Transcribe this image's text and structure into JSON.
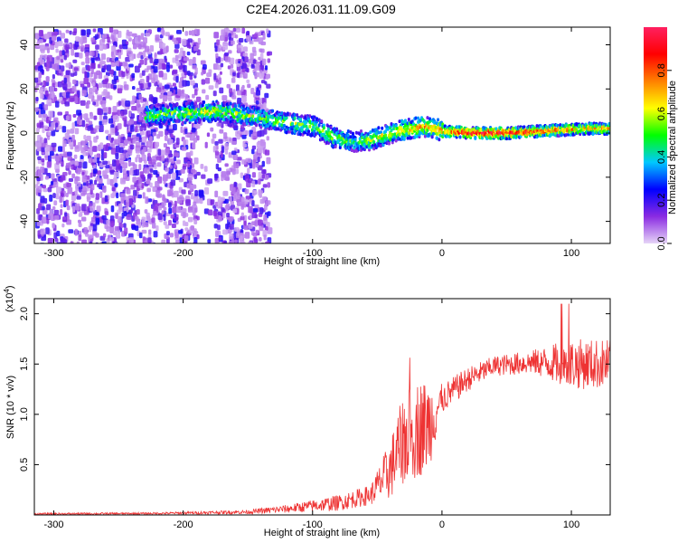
{
  "title": "C2E4.2026.031.11.09.G09",
  "chart_data": [
    {
      "type": "heatmap",
      "xlabel": "Height of straight line (km)",
      "ylabel": "Frequency (Hz)",
      "xlim": [
        -315,
        130
      ],
      "ylim": [
        -50,
        48
      ],
      "xticks": [
        -300,
        -200,
        -100,
        0,
        100
      ],
      "yticks": [
        -40,
        -20,
        0,
        20,
        40
      ],
      "colorbar": {
        "label": "Normalized spectral amplitude",
        "range": [
          0.0,
          1.0
        ],
        "ticks": [
          "0.0",
          "0.2",
          "0.4",
          "0.6",
          "0.8"
        ],
        "colors": [
          "#e6d4f7",
          "#8a2be2",
          "#0000ff",
          "#00c8ff",
          "#00ff00",
          "#ffff00",
          "#ff8000",
          "#ff0000",
          "#ff2060"
        ]
      },
      "signal_track": [
        {
          "x": -230,
          "f": 8,
          "amp": 0.5
        },
        {
          "x": -200,
          "f": 9,
          "amp": 0.55
        },
        {
          "x": -175,
          "f": 10,
          "amp": 0.6
        },
        {
          "x": -150,
          "f": 8,
          "amp": 0.55
        },
        {
          "x": -125,
          "f": 5,
          "amp": 0.55
        },
        {
          "x": -100,
          "f": 3,
          "amp": 0.55
        },
        {
          "x": -85,
          "f": -2,
          "amp": 0.55
        },
        {
          "x": -70,
          "f": -4,
          "amp": 0.5
        },
        {
          "x": -55,
          "f": -3,
          "amp": 0.6
        },
        {
          "x": -35,
          "f": 1,
          "amp": 0.65
        },
        {
          "x": -15,
          "f": 3,
          "amp": 0.7
        },
        {
          "x": 0,
          "f": 1,
          "amp": 0.75
        },
        {
          "x": 20,
          "f": 0,
          "amp": 0.95
        },
        {
          "x": 50,
          "f": 0,
          "amp": 0.95
        },
        {
          "x": 80,
          "f": 1,
          "amp": 0.8
        },
        {
          "x": 110,
          "f": 2,
          "amp": 0.75
        },
        {
          "x": 130,
          "f": 2,
          "amp": 0.75
        }
      ],
      "noise_region": {
        "x_from": -315,
        "x_to": -135,
        "f_from": -50,
        "f_to": 48
      }
    },
    {
      "type": "line",
      "xlabel": "Height of straight line (km)",
      "ylabel": "SNR (10 * v/v)",
      "multiplier": "(x10^4)",
      "xlim": [
        -315,
        130
      ],
      "ylim": [
        0,
        2.15
      ],
      "xticks": [
        -300,
        -200,
        -100,
        0,
        100
      ],
      "yticks": [
        0.5,
        1.0,
        1.5,
        2.0
      ],
      "color": "#ee3333",
      "envelope": [
        {
          "x": -315,
          "mean": 0.01,
          "spread": 0.01
        },
        {
          "x": -220,
          "mean": 0.015,
          "spread": 0.01
        },
        {
          "x": -150,
          "mean": 0.03,
          "spread": 0.02
        },
        {
          "x": -120,
          "mean": 0.06,
          "spread": 0.04
        },
        {
          "x": -80,
          "mean": 0.12,
          "spread": 0.08
        },
        {
          "x": -55,
          "mean": 0.2,
          "spread": 0.1
        },
        {
          "x": -40,
          "mean": 0.45,
          "spread": 0.3
        },
        {
          "x": -30,
          "mean": 0.75,
          "spread": 0.45
        },
        {
          "x": -20,
          "mean": 0.85,
          "spread": 0.5
        },
        {
          "x": -10,
          "mean": 0.9,
          "spread": 0.45
        },
        {
          "x": 0,
          "mean": 1.15,
          "spread": 0.15
        },
        {
          "x": 20,
          "mean": 1.35,
          "spread": 0.12
        },
        {
          "x": 40,
          "mean": 1.48,
          "spread": 0.1
        },
        {
          "x": 70,
          "mean": 1.52,
          "spread": 0.12
        },
        {
          "x": 100,
          "mean": 1.5,
          "spread": 0.25
        },
        {
          "x": 130,
          "mean": 1.5,
          "spread": 0.25
        }
      ]
    }
  ]
}
